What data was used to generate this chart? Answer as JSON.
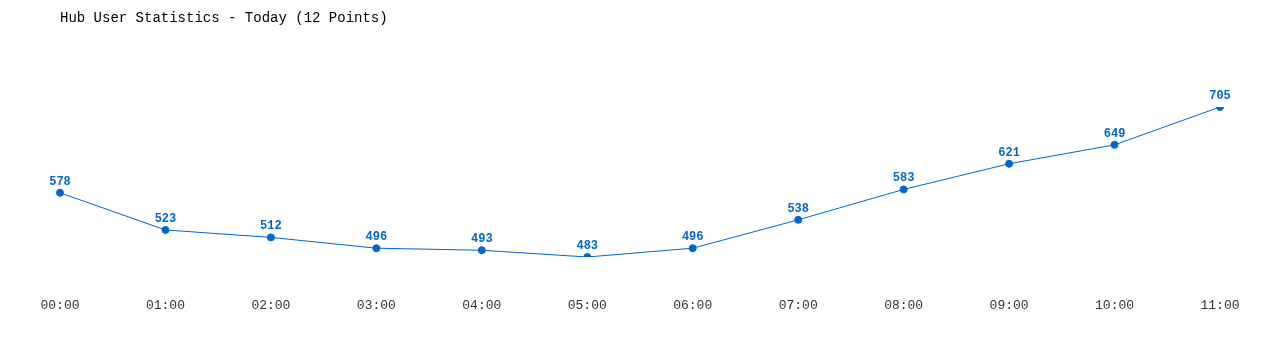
{
  "chart_data": {
    "type": "line",
    "title": "Hub User Statistics - Today (12 Points)",
    "categories": [
      "00:00",
      "01:00",
      "02:00",
      "03:00",
      "04:00",
      "05:00",
      "06:00",
      "07:00",
      "08:00",
      "09:00",
      "10:00",
      "11:00"
    ],
    "series": [
      {
        "color": "#0066cc",
        "values": [
          578,
          523,
          512,
          496,
          493,
          483,
          496,
          538,
          583,
          621,
          649,
          705
        ]
      }
    ],
    "data_labels": true,
    "marker": "circle",
    "line_style": "solid",
    "grid": false,
    "legend": false
  }
}
